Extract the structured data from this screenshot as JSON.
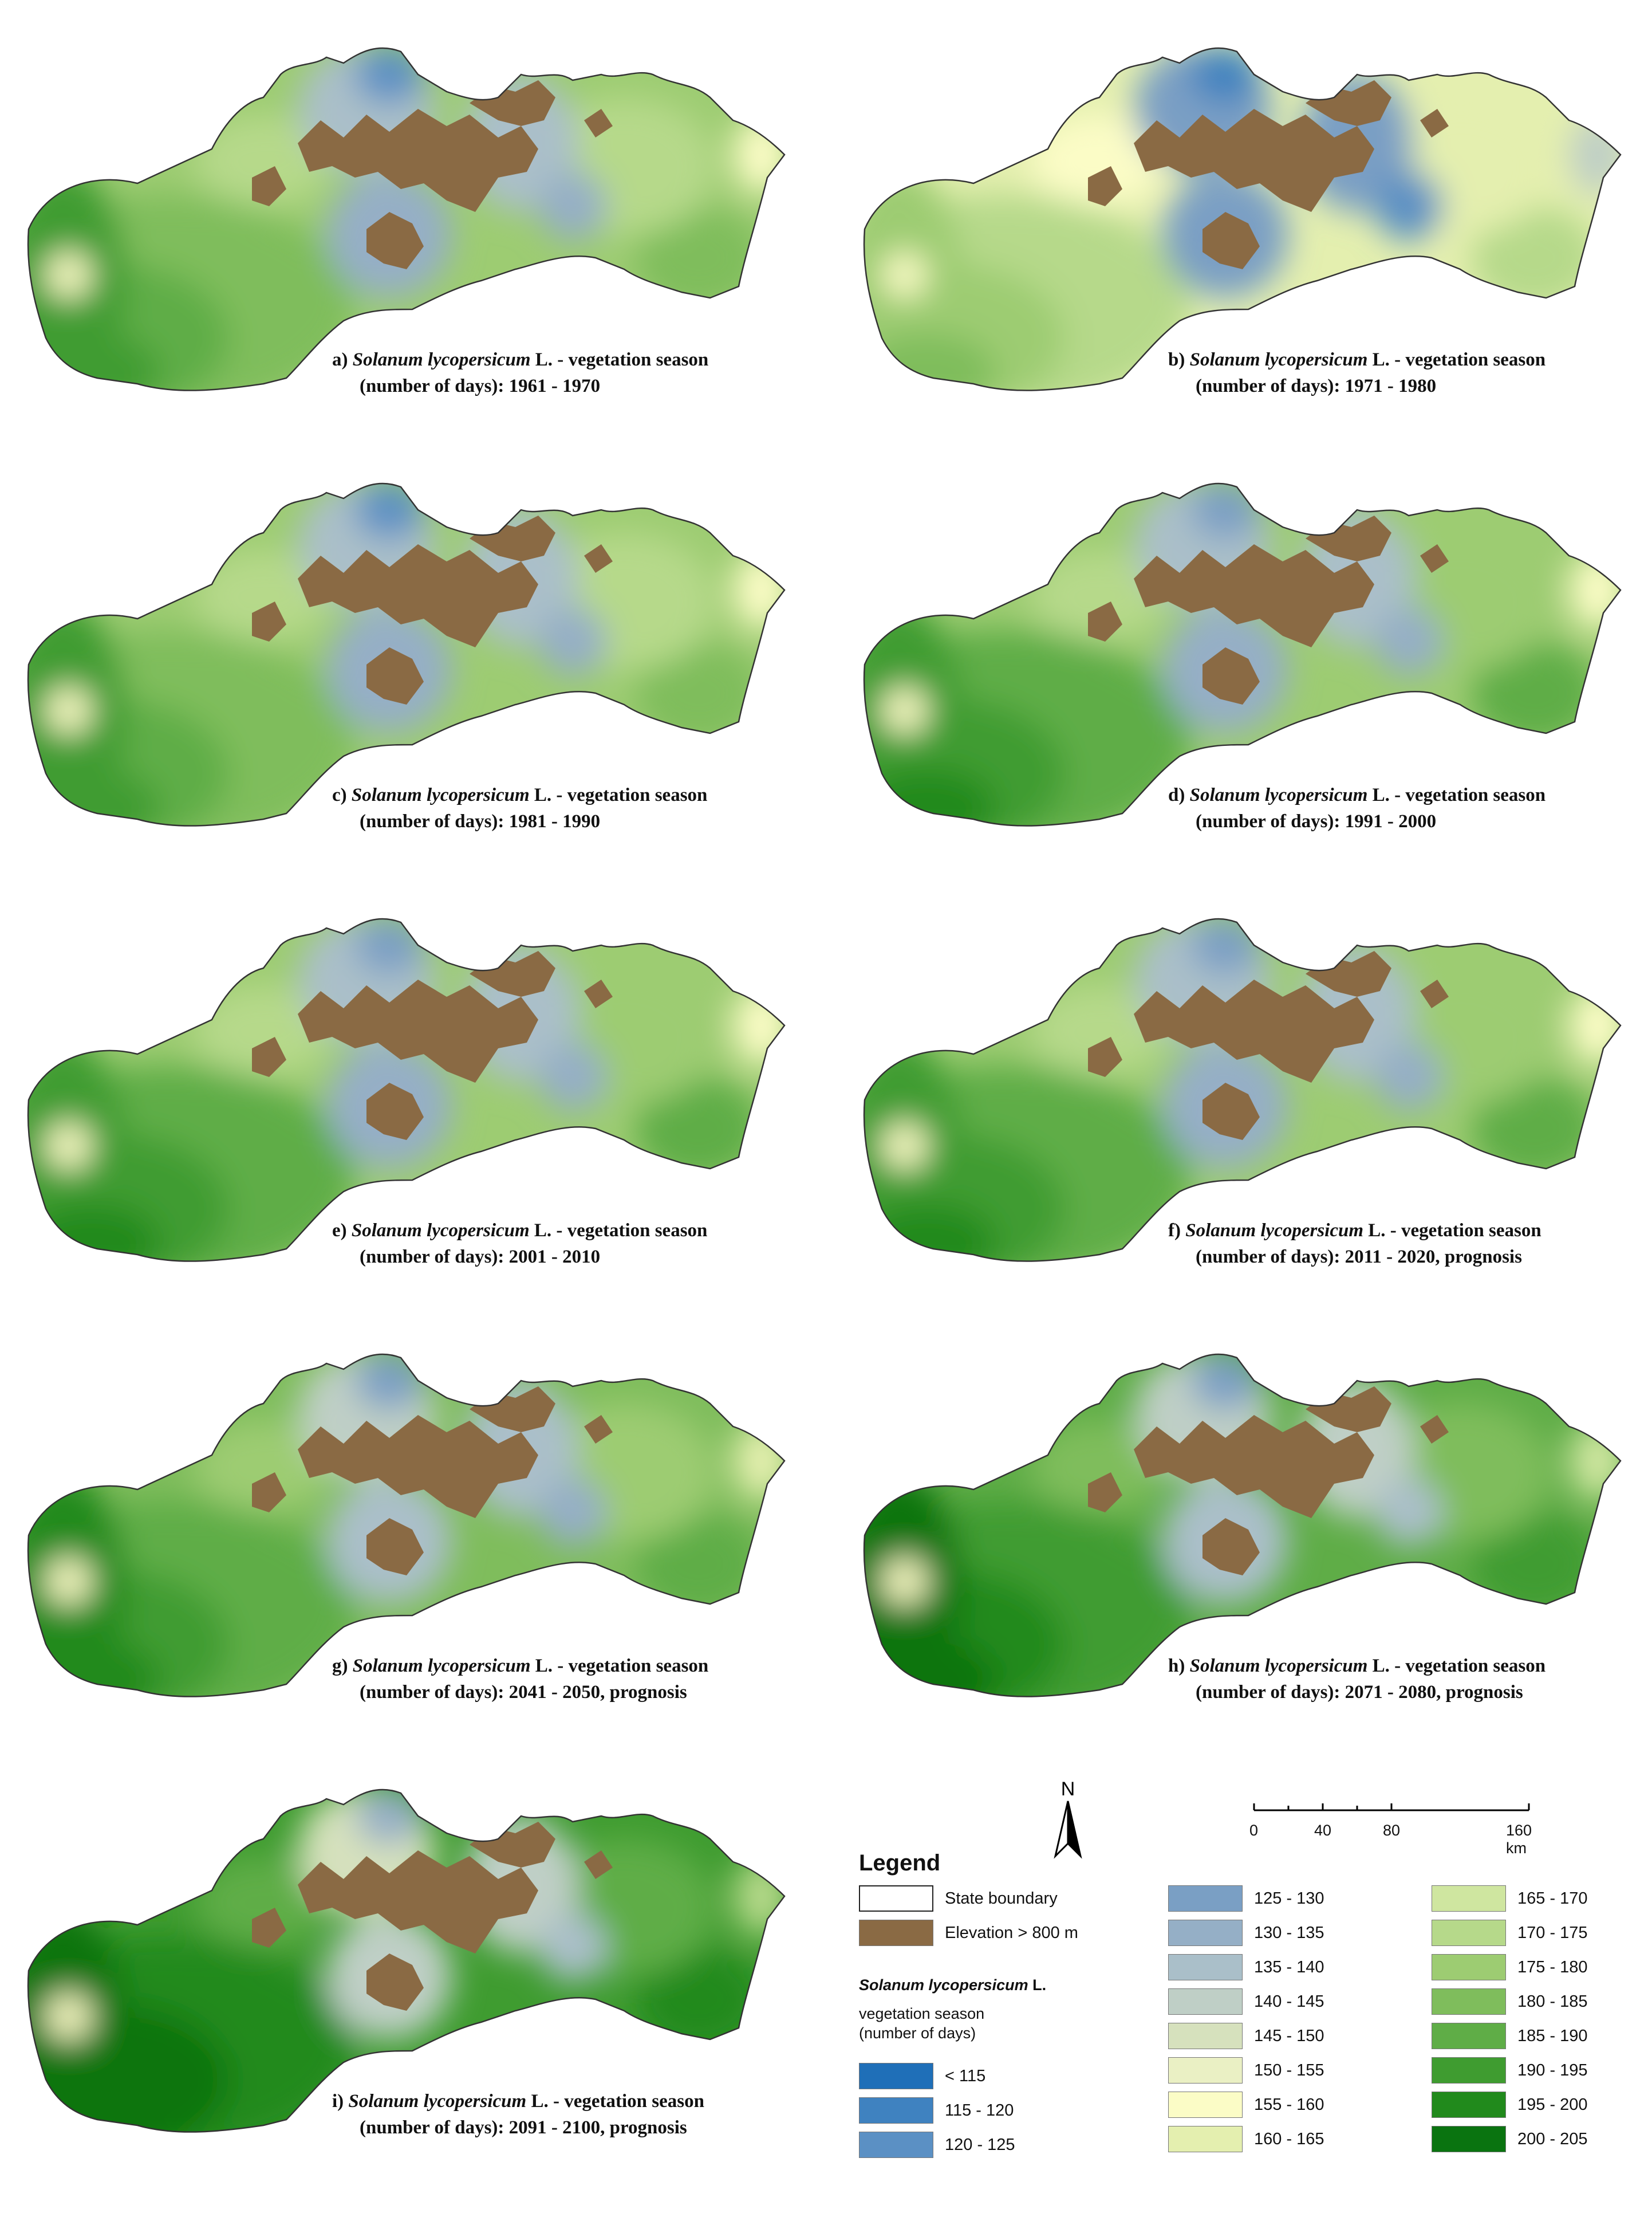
{
  "panels": [
    {
      "id": "a",
      "caption_line1_prefix": "a)",
      "species": "Solanum lycopersicum",
      "caption_line1_suffix": "L. - vegetation season",
      "caption_line2": "(number of days): 1961 - 1970",
      "greenness": 0.45
    },
    {
      "id": "b",
      "caption_line1_prefix": "b)",
      "species": "Solanum lycopersicum",
      "caption_line1_suffix": "L. - vegetation season",
      "caption_line2": "(number of days): 1971 - 1980",
      "greenness": 0.05
    },
    {
      "id": "c",
      "caption_line1_prefix": "c)",
      "species": "Solanum lycopersicum",
      "caption_line1_suffix": "L. - vegetation season",
      "caption_line2": "(number of days): 1981 - 1990",
      "greenness": 0.45
    },
    {
      "id": "d",
      "caption_line1_prefix": "d)",
      "species": "Solanum lycopersicum",
      "caption_line1_suffix": "L. - vegetation season",
      "caption_line2": "(number of days): 1991 - 2000",
      "greenness": 0.5
    },
    {
      "id": "e",
      "caption_line1_prefix": "e)",
      "species": "Solanum lycopersicum",
      "caption_line1_suffix": "L. - vegetation season",
      "caption_line2": "(number of days): 2001 - 2010",
      "greenness": 0.5
    },
    {
      "id": "f",
      "caption_line1_prefix": "f)",
      "species": "Solanum lycopersicum",
      "caption_line1_suffix": "L. - vegetation season",
      "caption_line2": "(number of days): 2011 - 2020, prognosis",
      "greenness": 0.55
    },
    {
      "id": "g",
      "caption_line1_prefix": "g)",
      "species": "Solanum lycopersicum",
      "caption_line1_suffix": "L. - vegetation season",
      "caption_line2": "(number of days): 2041 - 2050, prognosis",
      "greenness": 0.62
    },
    {
      "id": "h",
      "caption_line1_prefix": "h)",
      "species": "Solanum lycopersicum",
      "caption_line1_suffix": "L. - vegetation season",
      "caption_line2": "(number of days): 2071 - 2080, prognosis",
      "greenness": 0.78
    },
    {
      "id": "i",
      "caption_line1_prefix": "i)",
      "species": "Solanum lycopersicum",
      "caption_line1_suffix": "L. - vegetation season",
      "caption_line2": "(number of days): 2091 - 2100, prognosis",
      "greenness": 0.92
    }
  ],
  "north_arrow": {
    "label": "N"
  },
  "scale_bar": {
    "labels": [
      "0",
      "40",
      "80",
      "160 km"
    ]
  },
  "legend": {
    "title": "Legend",
    "state_boundary": "State boundary",
    "elevation": "Elevation > 800 m",
    "species": "Solanum lycopersicum",
    "species_suffix": "L.",
    "season_label": "vegetation season (number of days)",
    "classes": [
      {
        "label": "< 115",
        "color": "#1f6fb8"
      },
      {
        "label": "115 - 120",
        "color": "#3f82c0"
      },
      {
        "label": "120 - 125",
        "color": "#5b90c4"
      },
      {
        "label": "125 - 130",
        "color": "#7a9fc4"
      },
      {
        "label": "130 - 135",
        "color": "#95afc6"
      },
      {
        "label": "135 - 140",
        "color": "#aabfc9"
      },
      {
        "label": "140 - 145",
        "color": "#bfcfc6"
      },
      {
        "label": "145 - 150",
        "color": "#d6e1bd"
      },
      {
        "label": "150 - 155",
        "color": "#eaf0c4"
      },
      {
        "label": "155 - 160",
        "color": "#fbfcc6"
      },
      {
        "label": "160 - 165",
        "color": "#e4efaf"
      },
      {
        "label": "165 - 170",
        "color": "#cfe6a0"
      },
      {
        "label": "170 - 175",
        "color": "#b6d98a"
      },
      {
        "label": "175 - 180",
        "color": "#9dcc72"
      },
      {
        "label": "180 - 185",
        "color": "#7fbd5c"
      },
      {
        "label": "185 - 190",
        "color": "#5fad47"
      },
      {
        "label": "190 - 195",
        "color": "#3f9c30"
      },
      {
        "label": "195 - 200",
        "color": "#218a1c"
      },
      {
        "label": "200 - 205",
        "color": "#0a7410"
      }
    ],
    "boundary_color": "#ffffff",
    "elevation_color": "#8a6a44"
  }
}
